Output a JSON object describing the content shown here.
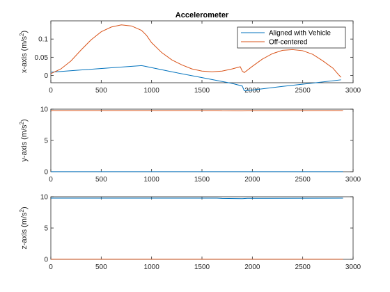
{
  "chart_data": [
    {
      "type": "line",
      "title": "Accelerometer",
      "ylabel": "x-axis (m/s",
      "ylabel_sup": "2",
      "ylabel_close": ")",
      "xlim": [
        0,
        3000
      ],
      "ylim": [
        -0.02,
        0.15
      ],
      "xticks": [
        0,
        500,
        1000,
        1500,
        2000,
        2500,
        3000
      ],
      "yticks": [
        0,
        0.05,
        0.1
      ],
      "ytick_labels": [
        "0",
        "0.05",
        "0.1"
      ],
      "legend": {
        "placement": "top-right",
        "entries": [
          "Aligned with Vehicle",
          "Off-centered"
        ]
      },
      "series": [
        {
          "name": "Aligned with Vehicle",
          "color": "#0072BD",
          "points": [
            [
              0,
              0.009
            ],
            [
              300,
              0.015
            ],
            [
              600,
              0.021
            ],
            [
              900,
              0.027
            ],
            [
              920,
              0.026
            ],
            [
              1200,
              0.01
            ],
            [
              1500,
              -0.006
            ],
            [
              1800,
              -0.022
            ],
            [
              1900,
              -0.029
            ],
            [
              1920,
              -0.042
            ],
            [
              2000,
              -0.04
            ],
            [
              2300,
              -0.03
            ],
            [
              2600,
              -0.021
            ],
            [
              2880,
              -0.012
            ]
          ]
        },
        {
          "name": "Off-centered",
          "color": "#D95319",
          "points": [
            [
              0,
              0.005
            ],
            [
              100,
              0.018
            ],
            [
              200,
              0.04
            ],
            [
              300,
              0.07
            ],
            [
              400,
              0.098
            ],
            [
              500,
              0.12
            ],
            [
              600,
              0.133
            ],
            [
              700,
              0.139
            ],
            [
              800,
              0.136
            ],
            [
              900,
              0.124
            ],
            [
              950,
              0.11
            ],
            [
              1000,
              0.09
            ],
            [
              1100,
              0.063
            ],
            [
              1200,
              0.043
            ],
            [
              1300,
              0.029
            ],
            [
              1400,
              0.018
            ],
            [
              1500,
              0.012
            ],
            [
              1600,
              0.01
            ],
            [
              1700,
              0.012
            ],
            [
              1800,
              0.018
            ],
            [
              1880,
              0.024
            ],
            [
              1900,
              0.012
            ],
            [
              1920,
              0.008
            ],
            [
              2000,
              0.025
            ],
            [
              2100,
              0.045
            ],
            [
              2200,
              0.06
            ],
            [
              2300,
              0.069
            ],
            [
              2400,
              0.071
            ],
            [
              2500,
              0.068
            ],
            [
              2600,
              0.058
            ],
            [
              2700,
              0.04
            ],
            [
              2800,
              0.02
            ],
            [
              2850,
              0.004
            ],
            [
              2880,
              -0.005
            ]
          ]
        }
      ]
    },
    {
      "type": "line",
      "ylabel": "y-axis (m/s",
      "ylabel_sup": "2",
      "ylabel_close": ")",
      "xlim": [
        0,
        3000
      ],
      "ylim": [
        0,
        10
      ],
      "xticks": [
        0,
        500,
        1000,
        1500,
        2000,
        2500,
        3000
      ],
      "yticks": [
        0,
        5,
        10
      ],
      "ytick_labels": [
        "0",
        "5",
        "10"
      ],
      "series": [
        {
          "name": "Aligned with Vehicle",
          "color": "#0072BD",
          "points": [
            [
              0,
              0.02
            ],
            [
              2900,
              0.02
            ]
          ]
        },
        {
          "name": "Off-centered",
          "color": "#D95319",
          "points": [
            [
              0,
              9.78
            ],
            [
              1650,
              9.78
            ],
            [
              1700,
              9.75
            ],
            [
              1900,
              9.72
            ],
            [
              1950,
              9.76
            ],
            [
              2900,
              9.78
            ]
          ]
        }
      ]
    },
    {
      "type": "line",
      "ylabel": "z-axis (m/s",
      "ylabel_sup": "2",
      "ylabel_close": ")",
      "xlim": [
        0,
        3000
      ],
      "ylim": [
        0,
        10
      ],
      "xticks": [
        0,
        500,
        1000,
        1500,
        2000,
        2500,
        3000
      ],
      "yticks": [
        0,
        5,
        10
      ],
      "ytick_labels": [
        "0",
        "5",
        "10"
      ],
      "series": [
        {
          "name": "Aligned with Vehicle",
          "color": "#0072BD",
          "points": [
            [
              0,
              9.78
            ],
            [
              1650,
              9.78
            ],
            [
              1700,
              9.73
            ],
            [
              1900,
              9.7
            ],
            [
              1950,
              9.75
            ],
            [
              2900,
              9.78
            ]
          ]
        },
        {
          "name": "Off-centered",
          "color": "#D95319",
          "points": [
            [
              0,
              0.02
            ],
            [
              2900,
              0.02
            ]
          ]
        }
      ]
    }
  ]
}
